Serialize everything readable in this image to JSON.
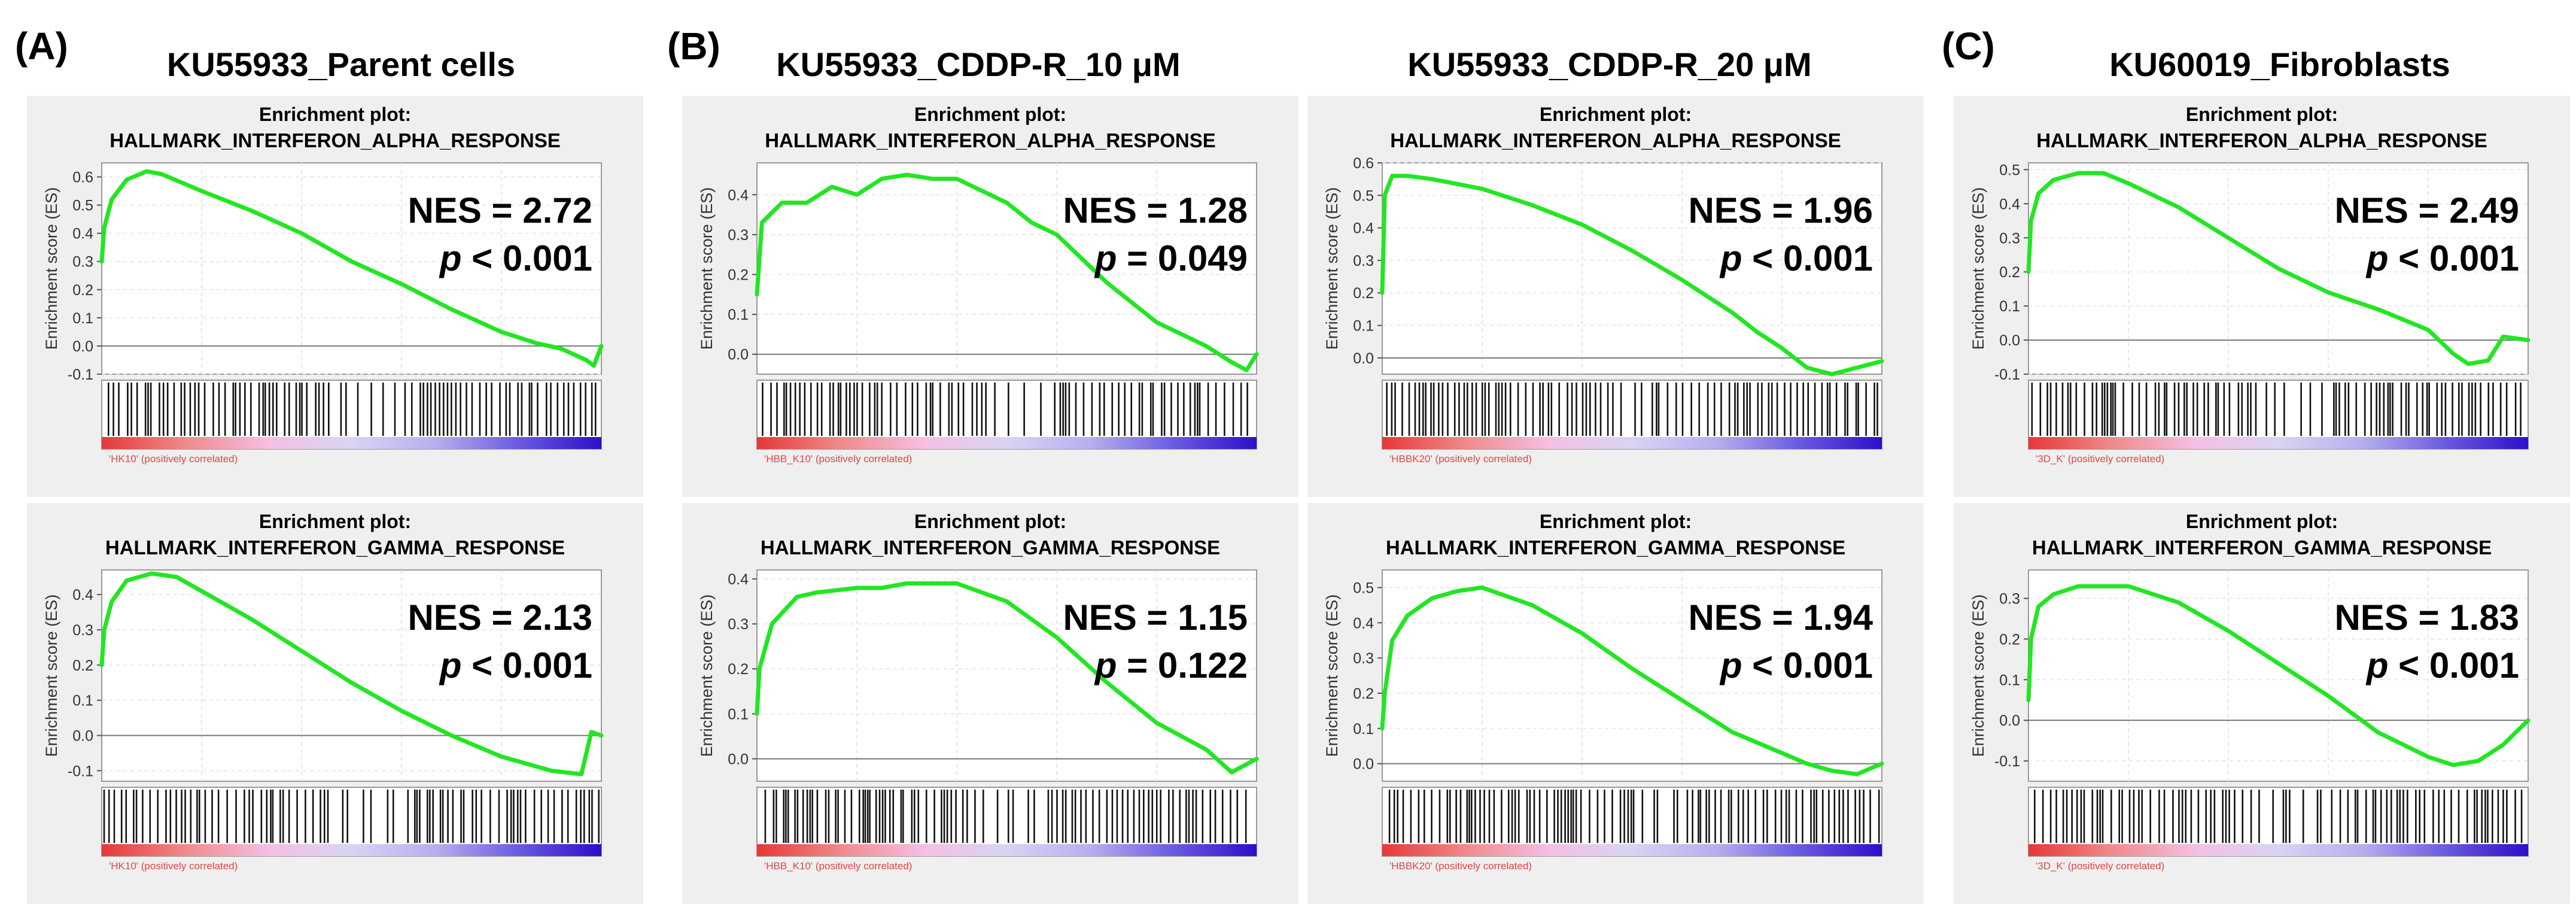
{
  "figure": {
    "labels": {
      "a": "(A)",
      "b": "(B)",
      "c": "(C)"
    },
    "column_titles": [
      "KU55933_Parent cells",
      "KU55933_CDDP-R_10 μM",
      "KU55933_CDDP-R_20 μM",
      "KU60019_Fibroblasts"
    ]
  },
  "colors": {
    "curve": "#22e622",
    "hits": "#111111",
    "ramp": [
      "#e63838",
      "#f08a8a",
      "#f5bfe3",
      "#d9d4f3",
      "#b5b0ee",
      "#6b5be0",
      "#2a10c9"
    ],
    "panel_bg": "#efefef"
  },
  "chart_data": [
    {
      "type": "line",
      "header": "Enrichment plot:",
      "title": "HALLMARK_INTERFERON_ALPHA_RESPONSE",
      "ylabel": "Enrichment score (ES)",
      "rank_label": "'HK10' (positively correlated)",
      "ylim": [
        -0.1,
        0.65
      ],
      "yticks": [
        -0.1,
        0.0,
        0.1,
        0.2,
        0.3,
        0.4,
        0.5,
        0.6
      ],
      "nes": "NES = 2.72",
      "p_label": "p",
      "p_text": " < 0.001",
      "x": [
        0,
        0.005,
        0.02,
        0.05,
        0.09,
        0.12,
        0.2,
        0.3,
        0.4,
        0.5,
        0.6,
        0.7,
        0.8,
        0.87,
        0.92,
        0.97,
        0.985,
        1.0
      ],
      "values": [
        0.3,
        0.42,
        0.52,
        0.59,
        0.62,
        0.61,
        0.55,
        0.48,
        0.4,
        0.3,
        0.22,
        0.13,
        0.05,
        0.01,
        -0.01,
        -0.05,
        -0.07,
        0.0
      ]
    },
    {
      "type": "line",
      "header": "Enrichment plot:",
      "title": "HALLMARK_INTERFERON_ALPHA_RESPONSE",
      "ylabel": "Enrichment score (ES)",
      "rank_label": "'HBB_K10' (positively correlated)",
      "ylim": [
        -0.05,
        0.48
      ],
      "yticks": [
        0.0,
        0.1,
        0.2,
        0.3,
        0.4
      ],
      "nes": "NES = 1.28",
      "p_label": "p",
      "p_text": " = 0.049",
      "x": [
        0,
        0.01,
        0.05,
        0.1,
        0.15,
        0.2,
        0.25,
        0.3,
        0.35,
        0.4,
        0.45,
        0.5,
        0.55,
        0.6,
        0.7,
        0.8,
        0.9,
        0.95,
        0.98,
        1.0
      ],
      "values": [
        0.15,
        0.33,
        0.38,
        0.38,
        0.42,
        0.4,
        0.44,
        0.45,
        0.44,
        0.44,
        0.41,
        0.38,
        0.33,
        0.3,
        0.18,
        0.08,
        0.02,
        -0.02,
        -0.04,
        0.0
      ]
    },
    {
      "type": "line",
      "header": "Enrichment plot:",
      "title": "HALLMARK_INTERFERON_ALPHA_RESPONSE",
      "ylabel": "Enrichment score (ES)",
      "rank_label": "'HBBK20' (positively correlated)",
      "ylim": [
        -0.05,
        0.6
      ],
      "yticks": [
        0.0,
        0.1,
        0.2,
        0.3,
        0.4,
        0.5,
        0.6
      ],
      "nes": "NES = 1.96",
      "p_label": "p",
      "p_text": " < 0.001",
      "x": [
        0,
        0.005,
        0.02,
        0.05,
        0.1,
        0.2,
        0.3,
        0.4,
        0.5,
        0.6,
        0.7,
        0.75,
        0.8,
        0.85,
        0.9,
        0.95,
        1.0
      ],
      "values": [
        0.2,
        0.5,
        0.56,
        0.56,
        0.55,
        0.52,
        0.47,
        0.41,
        0.33,
        0.24,
        0.14,
        0.08,
        0.03,
        -0.03,
        -0.05,
        -0.03,
        -0.01
      ]
    },
    {
      "type": "line",
      "header": "Enrichment plot:",
      "title": "HALLMARK_INTERFERON_ALPHA_RESPONSE",
      "ylabel": "Enrichment score (ES)",
      "rank_label": "'3D_K' (positively correlated)",
      "ylim": [
        -0.1,
        0.52
      ],
      "yticks": [
        -0.1,
        0.0,
        0.1,
        0.2,
        0.3,
        0.4,
        0.5
      ],
      "nes": "NES = 2.49",
      "p_label": "p",
      "p_text": " < 0.001",
      "x": [
        0,
        0.005,
        0.02,
        0.05,
        0.1,
        0.15,
        0.2,
        0.3,
        0.4,
        0.5,
        0.6,
        0.7,
        0.75,
        0.8,
        0.85,
        0.88,
        0.92,
        0.95,
        1.0
      ],
      "values": [
        0.2,
        0.35,
        0.43,
        0.47,
        0.49,
        0.49,
        0.46,
        0.39,
        0.3,
        0.21,
        0.14,
        0.09,
        0.06,
        0.03,
        -0.04,
        -0.07,
        -0.06,
        0.01,
        0.0
      ]
    },
    {
      "type": "line",
      "header": "Enrichment plot:",
      "title": "HALLMARK_INTERFERON_GAMMA_RESPONSE",
      "ylabel": "Enrichment score (ES)",
      "rank_label": "'HK10' (positively correlated)",
      "ylim": [
        -0.13,
        0.47
      ],
      "yticks": [
        -0.1,
        0.0,
        0.1,
        0.2,
        0.3,
        0.4
      ],
      "nes": "NES = 2.13",
      "p_label": "p",
      "p_text": " < 0.001",
      "x": [
        0,
        0.005,
        0.02,
        0.05,
        0.1,
        0.15,
        0.2,
        0.3,
        0.4,
        0.5,
        0.6,
        0.7,
        0.8,
        0.85,
        0.9,
        0.96,
        0.98,
        1.0
      ],
      "values": [
        0.2,
        0.3,
        0.38,
        0.44,
        0.46,
        0.45,
        0.41,
        0.33,
        0.24,
        0.15,
        0.07,
        0.0,
        -0.06,
        -0.08,
        -0.1,
        -0.11,
        0.01,
        0.0
      ]
    },
    {
      "type": "line",
      "header": "Enrichment plot:",
      "title": "HALLMARK_INTERFERON_GAMMA_RESPONSE",
      "ylabel": "Enrichment score (ES)",
      "rank_label": "'HBB_K10' (positively correlated)",
      "ylim": [
        -0.05,
        0.42
      ],
      "yticks": [
        0.0,
        0.1,
        0.2,
        0.3,
        0.4
      ],
      "nes": "NES = 1.15",
      "p_label": "p",
      "p_text": " = 0.122",
      "x": [
        0,
        0.005,
        0.03,
        0.08,
        0.12,
        0.2,
        0.25,
        0.3,
        0.35,
        0.4,
        0.45,
        0.5,
        0.6,
        0.7,
        0.8,
        0.9,
        0.95,
        1.0
      ],
      "values": [
        0.1,
        0.2,
        0.3,
        0.36,
        0.37,
        0.38,
        0.38,
        0.39,
        0.39,
        0.39,
        0.37,
        0.35,
        0.27,
        0.17,
        0.08,
        0.02,
        -0.03,
        0.0
      ]
    },
    {
      "type": "line",
      "header": "Enrichment plot:",
      "title": "HALLMARK_INTERFERON_GAMMA_RESPONSE",
      "ylabel": "Enrichment score (ES)",
      "rank_label": "'HBBK20' (positively correlated)",
      "ylim": [
        -0.05,
        0.55
      ],
      "yticks": [
        0.0,
        0.1,
        0.2,
        0.3,
        0.4,
        0.5
      ],
      "nes": "NES = 1.94",
      "p_label": "p",
      "p_text": " < 0.001",
      "x": [
        0,
        0.005,
        0.02,
        0.05,
        0.1,
        0.15,
        0.2,
        0.3,
        0.4,
        0.5,
        0.6,
        0.7,
        0.8,
        0.85,
        0.9,
        0.95,
        1.0
      ],
      "values": [
        0.1,
        0.2,
        0.35,
        0.42,
        0.47,
        0.49,
        0.5,
        0.45,
        0.37,
        0.27,
        0.18,
        0.09,
        0.03,
        0.0,
        -0.02,
        -0.03,
        0.0
      ]
    },
    {
      "type": "line",
      "header": "Enrichment plot:",
      "title": "HALLMARK_INTERFERON_GAMMA_RESPONSE",
      "ylabel": "Enrichment score (ES)",
      "rank_label": "'3D_K' (positively correlated)",
      "ylim": [
        -0.15,
        0.37
      ],
      "yticks": [
        -0.1,
        0.0,
        0.1,
        0.2,
        0.3
      ],
      "nes": "NES = 1.83",
      "p_label": "p",
      "p_text": " < 0.001",
      "x": [
        0,
        0.005,
        0.02,
        0.05,
        0.1,
        0.2,
        0.3,
        0.4,
        0.5,
        0.6,
        0.7,
        0.75,
        0.8,
        0.85,
        0.9,
        0.95,
        1.0
      ],
      "values": [
        0.05,
        0.2,
        0.28,
        0.31,
        0.33,
        0.33,
        0.29,
        0.22,
        0.14,
        0.06,
        -0.03,
        -0.06,
        -0.09,
        -0.11,
        -0.1,
        -0.06,
        0.0
      ]
    }
  ]
}
